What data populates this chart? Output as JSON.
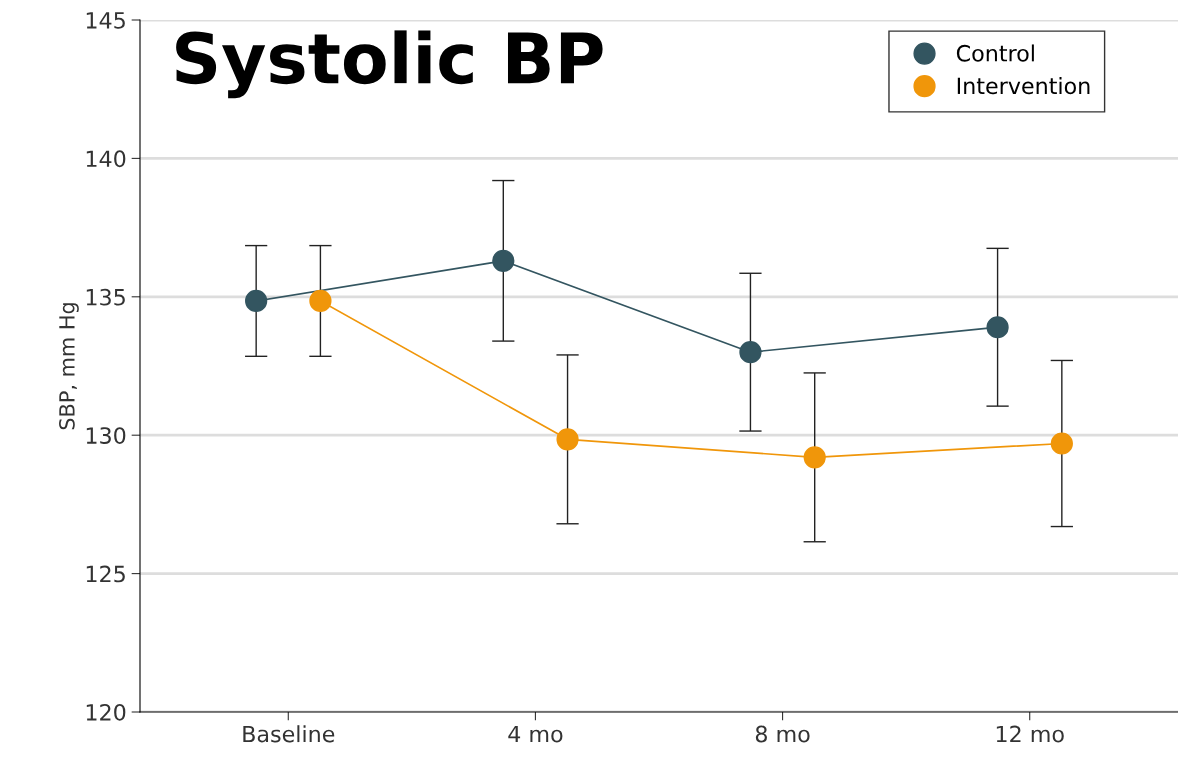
{
  "chart_data": {
    "type": "line",
    "title": "Systolic BP",
    "ylabel": "SBP, mm Hg",
    "categories": [
      "Baseline",
      "4 mo",
      "8 mo",
      "12 mo"
    ],
    "series": [
      {
        "name": "Control",
        "color": "#335560",
        "values": [
          134.85,
          136.3,
          133.0,
          133.9
        ],
        "errors": [
          2.0,
          2.9,
          2.85,
          2.85
        ]
      },
      {
        "name": "Intervention",
        "color": "#f0960a",
        "values": [
          134.85,
          129.85,
          129.2,
          129.7
        ],
        "errors": [
          2.0,
          3.05,
          3.05,
          3.0
        ]
      }
    ],
    "ylim": [
      120,
      145
    ],
    "yticks": [
      120,
      125,
      130,
      135,
      140,
      145
    ],
    "grid": "y",
    "legend": "top right",
    "marker": "circle",
    "line_style": "solid"
  }
}
